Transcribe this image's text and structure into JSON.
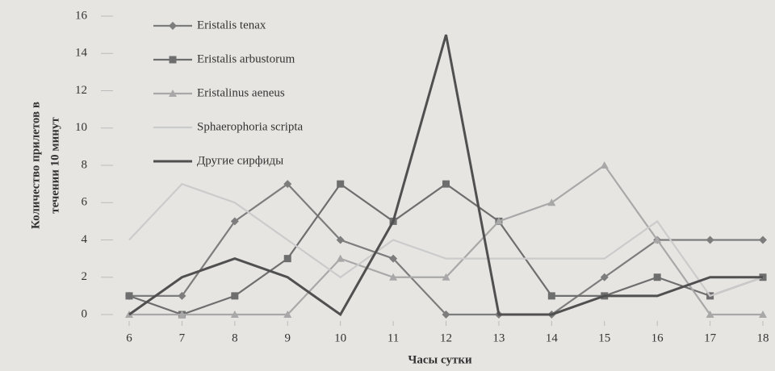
{
  "chart_data": {
    "type": "line",
    "x_label": "Часы сутки",
    "y_label": [
      "Количество прилетов в",
      "течении 10 минут"
    ],
    "x": [
      6,
      7,
      8,
      9,
      10,
      11,
      12,
      13,
      14,
      15,
      16,
      17,
      18
    ],
    "xlim": [
      6,
      18
    ],
    "xticks": [
      6,
      7,
      8,
      9,
      10,
      11,
      12,
      13,
      14,
      15,
      16,
      17,
      18
    ],
    "ylim": [
      0,
      16
    ],
    "yticks": [
      0,
      2,
      4,
      6,
      8,
      10,
      12,
      14,
      16
    ],
    "grid": false,
    "legend": "upper left",
    "series": [
      {
        "name": "Eristalis tenax",
        "color": "#7d7d7d",
        "marker": "diamond",
        "values": [
          1,
          1,
          5,
          7,
          4,
          3,
          0,
          0,
          0,
          2,
          4,
          4,
          4
        ]
      },
      {
        "name": "Eristalis arbustorum",
        "color": "#6e6e6e",
        "marker": "square",
        "values": [
          1,
          0,
          1,
          3,
          7,
          5,
          7,
          5,
          1,
          1,
          2,
          1,
          2
        ]
      },
      {
        "name": "Eristalinus aeneus",
        "color": "#a8a8a8",
        "marker": "triangle",
        "values": [
          0,
          0,
          0,
          0,
          3,
          2,
          2,
          5,
          6,
          8,
          4,
          0,
          0
        ]
      },
      {
        "name": "Sphaerophoria scripta",
        "color": "#cbcbcb",
        "marker": "none",
        "values": [
          4,
          7,
          6,
          4,
          2,
          4,
          3,
          3,
          3,
          3,
          5,
          1,
          2
        ]
      },
      {
        "name": "Другие сирфиды",
        "color": "#505050",
        "marker": "none",
        "values": [
          0,
          2,
          3,
          2,
          0,
          5,
          15,
          0,
          0,
          1,
          1,
          2,
          2
        ]
      }
    ]
  }
}
